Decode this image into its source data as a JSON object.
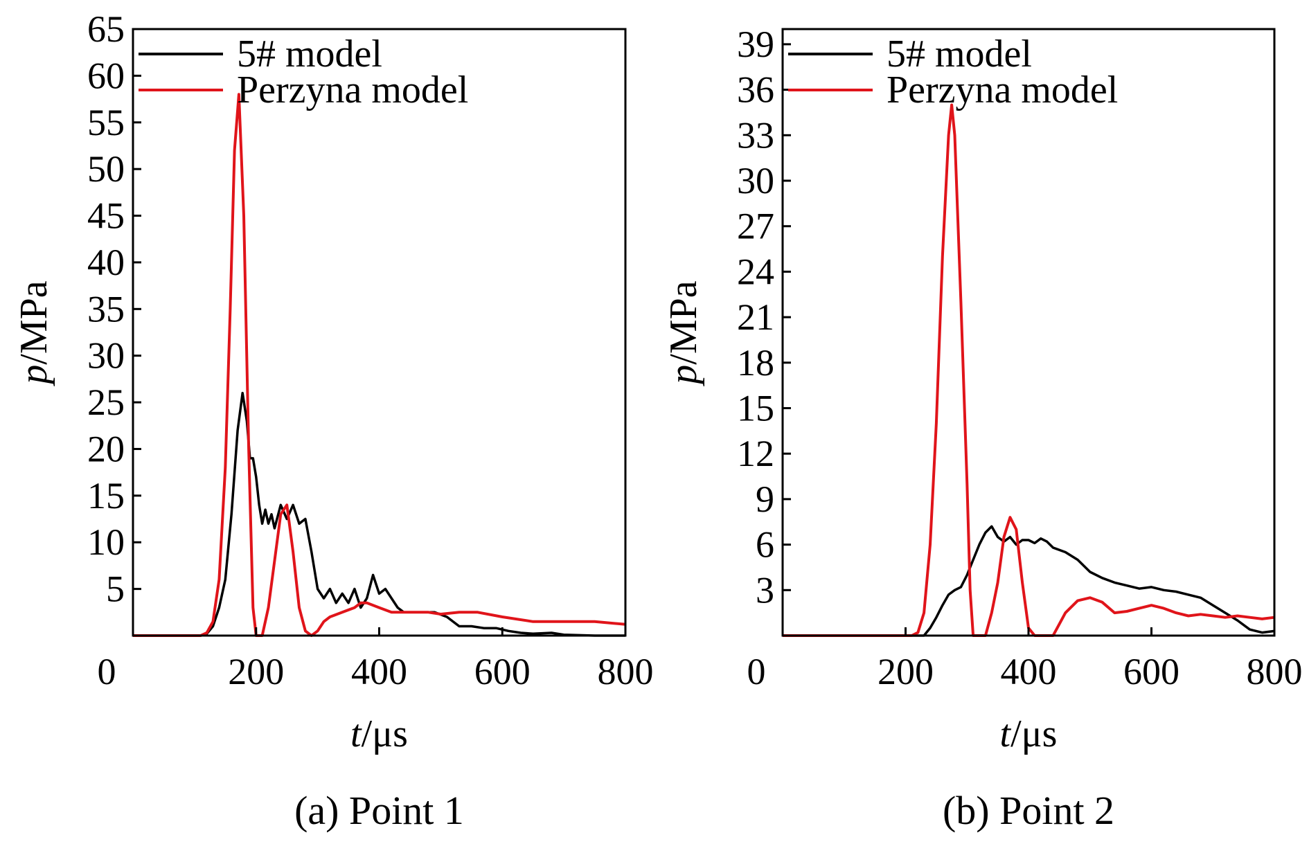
{
  "chart_data": [
    {
      "type": "line",
      "caption": "(a) Point 1",
      "xlabel_var": "t",
      "xlabel_unit": "/μs",
      "ylabel_var": "p",
      "ylabel_unit": "/MPa",
      "xlim": [
        0,
        800
      ],
      "ylim": [
        0,
        65
      ],
      "xticks": [
        0,
        200,
        400,
        600,
        800
      ],
      "yticks": [
        5,
        10,
        15,
        20,
        25,
        30,
        35,
        40,
        45,
        50,
        55,
        60,
        65
      ],
      "extra_ytick": "0",
      "legend_position": "top-left",
      "series": [
        {
          "name": "5# model",
          "color": "#000000",
          "x": [
            0,
            100,
            110,
            120,
            130,
            140,
            150,
            160,
            170,
            178,
            185,
            190,
            195,
            200,
            205,
            210,
            215,
            220,
            225,
            230,
            240,
            250,
            260,
            270,
            280,
            290,
            300,
            310,
            320,
            330,
            340,
            350,
            360,
            370,
            380,
            390,
            400,
            410,
            420,
            430,
            440,
            450,
            470,
            490,
            510,
            530,
            550,
            570,
            590,
            610,
            630,
            650,
            680,
            700,
            750,
            800
          ],
          "y": [
            0,
            0,
            0,
            0.2,
            1,
            3,
            6,
            13,
            22,
            26,
            23,
            19,
            19,
            17,
            14,
            12,
            13.5,
            12,
            13,
            11.5,
            14,
            12.5,
            14,
            12,
            12.5,
            9,
            5,
            4,
            5,
            3.5,
            4.5,
            3.5,
            5,
            3,
            4,
            6.5,
            4.5,
            5,
            4,
            3,
            2.5,
            2.5,
            2.5,
            2.5,
            2,
            1,
            1,
            0.8,
            0.8,
            0.5,
            0.3,
            0.2,
            0.3,
            0.1,
            0,
            0
          ]
        },
        {
          "name": "Perzyna model",
          "color": "#e0141a",
          "x": [
            0,
            110,
            120,
            130,
            140,
            150,
            158,
            165,
            172,
            180,
            188,
            195,
            200,
            205,
            210,
            220,
            230,
            240,
            250,
            260,
            270,
            280,
            290,
            300,
            310,
            320,
            340,
            360,
            370,
            380,
            400,
            420,
            450,
            480,
            500,
            530,
            560,
            600,
            650,
            700,
            750,
            800
          ],
          "y": [
            0,
            0,
            0.3,
            1.5,
            6,
            18,
            35,
            52,
            58,
            45,
            20,
            3,
            0,
            0,
            0,
            3,
            8,
            13,
            14,
            9,
            3,
            0.5,
            0,
            0.5,
            1.5,
            2,
            2.5,
            3,
            3.5,
            3.5,
            3,
            2.5,
            2.5,
            2.5,
            2.3,
            2.5,
            2.5,
            2,
            1.5,
            1.5,
            1.5,
            1.2
          ]
        }
      ]
    },
    {
      "type": "line",
      "caption": "(b) Point 2",
      "xlabel_var": "t",
      "xlabel_unit": "/μs",
      "ylabel_var": "p",
      "ylabel_unit": "/MPa",
      "xlim": [
        0,
        800
      ],
      "ylim": [
        0,
        40
      ],
      "xticks": [
        0,
        200,
        400,
        600,
        800
      ],
      "yticks": [
        3,
        6,
        9,
        12,
        15,
        18,
        21,
        24,
        27,
        30,
        33,
        36,
        39
      ],
      "extra_ytick": "0",
      "legend_position": "top-left",
      "series": [
        {
          "name": "5# model",
          "color": "#000000",
          "x": [
            0,
            200,
            210,
            220,
            230,
            240,
            250,
            260,
            270,
            280,
            290,
            300,
            310,
            320,
            330,
            340,
            350,
            360,
            370,
            380,
            390,
            400,
            410,
            420,
            430,
            440,
            460,
            480,
            500,
            520,
            540,
            560,
            580,
            600,
            620,
            640,
            660,
            680,
            700,
            720,
            740,
            760,
            780,
            800
          ],
          "y": [
            0,
            0,
            0,
            0,
            0,
            0.5,
            1.2,
            2,
            2.7,
            3,
            3.2,
            4,
            5,
            6,
            6.8,
            7.2,
            6.5,
            6.2,
            6.5,
            6,
            6.3,
            6.3,
            6.1,
            6.4,
            6.2,
            5.8,
            5.5,
            5,
            4.2,
            3.8,
            3.5,
            3.3,
            3.1,
            3.2,
            3.0,
            2.9,
            2.7,
            2.5,
            2.0,
            1.5,
            1.0,
            0.4,
            0.2,
            0.3
          ]
        },
        {
          "name": "Perzyna model",
          "color": "#e0141a",
          "x": [
            0,
            210,
            220,
            230,
            240,
            250,
            260,
            270,
            275,
            280,
            290,
            300,
            305,
            310,
            320,
            330,
            340,
            350,
            360,
            370,
            380,
            390,
            400,
            410,
            420,
            430,
            440,
            460,
            480,
            500,
            520,
            540,
            560,
            580,
            600,
            620,
            640,
            660,
            680,
            700,
            720,
            740,
            760,
            780,
            800
          ],
          "y": [
            0,
            0,
            0.2,
            1.5,
            6,
            14,
            25,
            33,
            35,
            33,
            22,
            10,
            3,
            0,
            0,
            0,
            1.5,
            3.5,
            6.5,
            7.8,
            7,
            3.5,
            0.5,
            0,
            0,
            0,
            0,
            1.5,
            2.3,
            2.5,
            2.2,
            1.5,
            1.6,
            1.8,
            2.0,
            1.8,
            1.5,
            1.3,
            1.4,
            1.3,
            1.2,
            1.3,
            1.2,
            1.1,
            1.2
          ]
        }
      ]
    }
  ]
}
